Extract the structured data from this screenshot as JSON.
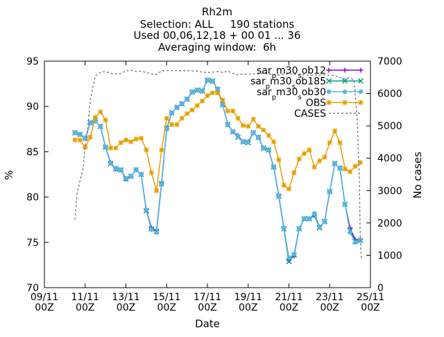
{
  "chart_data": {
    "type": "line",
    "title": "Rh2m",
    "subtitle_lines": [
      "Selection: ALL     190 stations",
      "Used 00,06,12,18 + 00 01 ... 36",
      "Averaging window:  6h"
    ],
    "xlabel": "Date",
    "ylabel": "%",
    "y2label": "No cases",
    "xlim": [
      0,
      16
    ],
    "ylim": [
      70,
      95
    ],
    "y2lim": [
      0,
      7000
    ],
    "x_tick_values": [
      0,
      2,
      4,
      6,
      8,
      10,
      12,
      14,
      16
    ],
    "x_tick_labels": [
      [
        "09/11",
        "00Z"
      ],
      [
        "11/11",
        "00Z"
      ],
      [
        "13/11",
        "00Z"
      ],
      [
        "15/11",
        "00Z"
      ],
      [
        "17/11",
        "00Z"
      ],
      [
        "19/11",
        "00Z"
      ],
      [
        "21/11",
        "00Z"
      ],
      [
        "23/11",
        "00Z"
      ],
      [
        "25/11",
        "00Z"
      ]
    ],
    "y_ticks": [
      70,
      75,
      80,
      85,
      90,
      95
    ],
    "y2_ticks": [
      0,
      1000,
      2000,
      3000,
      4000,
      5000,
      6000,
      7000
    ],
    "grid": false,
    "legend_position": "top-right",
    "x_units": "days since 09/11 00Z",
    "series": [
      {
        "name": "sar_{p}m30_{s}ob12",
        "name_parts": [
          [
            "sar",
            "p",
            "m30",
            "s",
            "ob12"
          ]
        ],
        "color": "#9400d3",
        "marker": "plus",
        "axis": "y",
        "x": [
          1.5,
          1.75,
          2,
          2.25,
          2.5,
          2.75,
          3,
          3.25,
          3.5,
          3.75,
          4,
          4.25,
          4.5,
          4.75,
          5,
          5.25,
          5.5,
          5.75,
          6,
          6.25,
          6.5,
          6.75,
          7,
          7.25,
          7.5,
          7.75,
          8,
          8.25,
          8.5,
          8.75,
          9,
          9.25,
          9.5,
          9.75,
          10,
          10.25,
          10.5,
          10.75,
          11,
          11.25,
          11.5,
          11.75,
          12,
          12.25,
          12.5,
          12.75,
          13,
          13.25,
          13.5,
          13.75,
          14,
          14.25,
          14.5,
          14.75,
          15,
          15.25,
          15.5,
          15.75
        ],
        "values": [
          87.1,
          86.9,
          86.5,
          88.2,
          88.4,
          87.8,
          85.5,
          83.8,
          83.1,
          83.0,
          82.0,
          82.3,
          83.0,
          82.5,
          78.6,
          76.6,
          76.3,
          81.5,
          87.6,
          89.3,
          89.9,
          90.3,
          90.8,
          91.6,
          91.8,
          91.7,
          92.9,
          92.8,
          91.9,
          90.2,
          88.0,
          87.2,
          86.8,
          86.1,
          86.1,
          87.1,
          86.6,
          85.4,
          85.2,
          83.3,
          80.2,
          76.6,
          73.0,
          73.5,
          76.5,
          77.6,
          77.6,
          78.0,
          76.7,
          77.3,
          80.6,
          83.7,
          83.2,
          79.2,
          76.6,
          75.3,
          75.3,
          null
        ]
      },
      {
        "name": "sar_{p}m30_{s}ob185",
        "name_parts": [
          [
            "sar",
            "p",
            "m30",
            "s",
            "ob185"
          ]
        ],
        "color": "#009e73",
        "marker": "cross",
        "axis": "y",
        "x": [
          1.5,
          1.75,
          2,
          2.25,
          2.5,
          2.75,
          3,
          3.25,
          3.5,
          3.75,
          4,
          4.25,
          4.5,
          4.75,
          5,
          5.25,
          5.5,
          5.75,
          6,
          6.25,
          6.5,
          6.75,
          7,
          7.25,
          7.5,
          7.75,
          8,
          8.25,
          8.5,
          8.75,
          9,
          9.25,
          9.5,
          9.75,
          10,
          10.25,
          10.5,
          10.75,
          11,
          11.25,
          11.5,
          11.75,
          12,
          12.25,
          12.5,
          12.75,
          13,
          13.25,
          13.5,
          13.75,
          14,
          14.25,
          14.5,
          14.75,
          15,
          15.25,
          15.5
        ],
        "values": [
          87.1,
          86.9,
          86.5,
          88.2,
          88.4,
          87.8,
          85.5,
          83.7,
          83.1,
          83.0,
          82.0,
          82.3,
          83.0,
          82.5,
          78.5,
          76.5,
          76.2,
          81.5,
          87.6,
          89.3,
          89.9,
          90.3,
          90.8,
          91.6,
          91.8,
          91.7,
          92.9,
          92.8,
          91.9,
          90.2,
          88.0,
          87.2,
          86.6,
          86.1,
          86.0,
          87.1,
          86.6,
          85.4,
          85.2,
          83.3,
          80.1,
          76.5,
          72.9,
          73.6,
          76.5,
          77.6,
          77.6,
          78.0,
          76.6,
          77.3,
          80.6,
          83.7,
          83.2,
          79.2,
          76.3,
          75.1,
          75.2
        ]
      },
      {
        "name": "sar_{p}m30_{s}ob30",
        "name_parts": [
          [
            "sar",
            "p",
            "m30",
            "s",
            "ob30"
          ]
        ],
        "color": "#56b4e9",
        "marker": "circle",
        "axis": "y",
        "x": [
          1.5,
          1.75,
          2,
          2.25,
          2.5,
          2.75,
          3,
          3.25,
          3.5,
          3.75,
          4,
          4.25,
          4.5,
          4.75,
          5,
          5.25,
          5.5,
          5.75,
          6,
          6.25,
          6.5,
          6.75,
          7,
          7.25,
          7.5,
          7.75,
          8,
          8.25,
          8.5,
          8.75,
          9,
          9.25,
          9.5,
          9.75,
          10,
          10.25,
          10.5,
          10.75,
          11,
          11.25,
          11.5,
          11.75,
          12,
          12.25,
          12.5,
          12.75,
          13,
          13.25,
          13.5,
          13.75,
          14,
          14.25,
          14.5,
          14.75,
          15,
          15.25,
          15.5
        ],
        "values": [
          87.1,
          86.9,
          86.5,
          88.2,
          88.4,
          87.8,
          85.5,
          83.7,
          83.2,
          83.0,
          82.1,
          82.3,
          83.0,
          82.5,
          78.5,
          76.4,
          76.1,
          81.4,
          87.5,
          89.3,
          89.9,
          90.3,
          90.8,
          91.6,
          91.8,
          91.7,
          92.9,
          92.8,
          91.9,
          90.2,
          88.0,
          87.2,
          86.7,
          86.1,
          86.1,
          87.1,
          86.6,
          85.4,
          85.2,
          83.3,
          80.1,
          76.6,
          73.3,
          73.7,
          76.5,
          77.6,
          77.6,
          78.2,
          76.7,
          77.3,
          80.6,
          83.7,
          83.2,
          79.2,
          76.1,
          75.0,
          75.2
        ]
      },
      {
        "name": "OBS",
        "color": "#e69f00",
        "marker": "star",
        "axis": "y",
        "x": [
          1.5,
          1.75,
          2,
          2.25,
          2.5,
          2.75,
          3,
          3.25,
          3.5,
          3.75,
          4,
          4.25,
          4.5,
          4.75,
          5,
          5.25,
          5.5,
          5.75,
          6,
          6.25,
          6.5,
          6.75,
          7,
          7.25,
          7.5,
          7.75,
          8,
          8.25,
          8.5,
          8.75,
          9,
          9.25,
          9.5,
          9.75,
          10,
          10.25,
          10.5,
          10.75,
          11,
          11.25,
          11.5,
          11.75,
          12,
          12.25,
          12.5,
          12.75,
          13,
          13.25,
          13.5,
          13.75,
          14,
          14.25,
          14.5,
          14.75,
          15,
          15.25,
          15.5
        ],
        "values": [
          86.3,
          86.3,
          85.5,
          86.6,
          88.8,
          89.4,
          88.5,
          85.4,
          85.4,
          86.0,
          86.3,
          86.1,
          86.4,
          86.5,
          85.2,
          82.7,
          80.7,
          85.2,
          88.7,
          88.0,
          88.0,
          88.7,
          89.2,
          89.6,
          90.1,
          90.6,
          91.2,
          91.5,
          91.5,
          90.7,
          89.5,
          89.5,
          88.7,
          87.9,
          87.8,
          88.6,
          87.8,
          87.4,
          86.8,
          86.1,
          84.1,
          81.3,
          80.9,
          82.7,
          84.2,
          84.8,
          85.2,
          83.3,
          84.0,
          84.4,
          86.0,
          87.3,
          86.0,
          83.1,
          82.8,
          83.4,
          83.8
        ]
      },
      {
        "name": "CASES",
        "color": "#7f7f7f",
        "marker": "none",
        "dashed": true,
        "axis": "y2",
        "x": [
          1.5,
          1.6,
          1.75,
          1.9,
          2,
          2.1,
          2.25,
          2.5,
          2.75,
          3,
          3.25,
          3.5,
          3.75,
          4,
          4.25,
          4.5,
          4.75,
          5,
          5.25,
          5.5,
          5.75,
          6,
          6.25,
          6.5,
          6.75,
          7,
          7.25,
          7.5,
          7.75,
          8,
          8.25,
          8.5,
          8.75,
          9,
          9.25,
          9.5,
          9.75,
          10,
          10.25,
          10.5,
          10.75,
          11,
          11.25,
          11.5,
          11.75,
          12,
          12.25,
          12.5,
          12.75,
          13,
          13.25,
          13.5,
          13.75,
          14,
          14.25,
          14.5,
          14.75,
          15,
          15.2,
          15.35,
          15.45,
          15.5,
          15.55
        ],
        "values": [
          2100,
          2900,
          3300,
          3700,
          4400,
          4700,
          5800,
          6550,
          6650,
          6680,
          6620,
          6600,
          6620,
          6700,
          6720,
          6680,
          6690,
          6650,
          6610,
          6590,
          6700,
          6710,
          6710,
          6710,
          6700,
          6710,
          6700,
          6690,
          6660,
          6650,
          6660,
          6680,
          6650,
          6690,
          6620,
          6580,
          6600,
          6600,
          6610,
          6600,
          6630,
          6600,
          6580,
          6570,
          6600,
          6610,
          6600,
          6600,
          6580,
          6560,
          6570,
          6570,
          6580,
          6560,
          6550,
          6500,
          6450,
          6500,
          6400,
          5200,
          3500,
          1500,
          900
        ]
      }
    ]
  }
}
